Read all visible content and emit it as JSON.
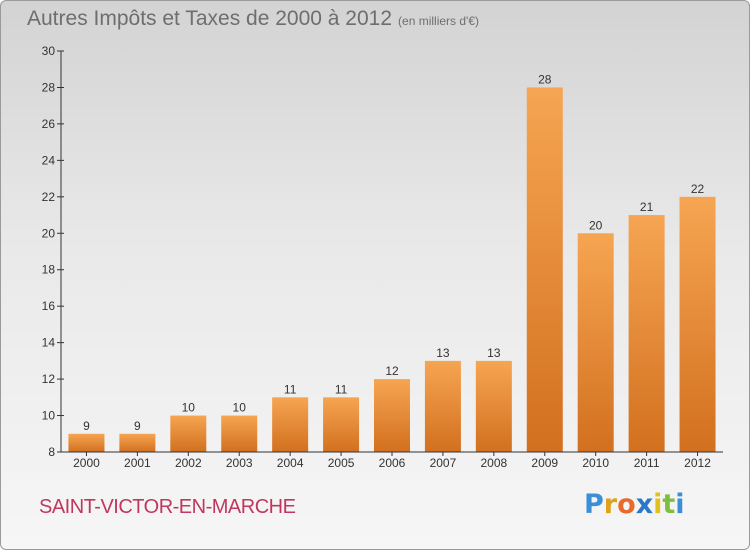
{
  "title": "Autres Impôts et Taxes de 2000 à 2012",
  "unit_note": "(en milliers d'€)",
  "commune": "SAINT-VICTOR-EN-MARCHE",
  "brand": {
    "letters": [
      "P",
      "r",
      "o",
      "x",
      "i",
      "t",
      "i"
    ],
    "colors": [
      "#3a8fd6",
      "#e0a11b",
      "#e86a2c",
      "#2b78c8",
      "#e2c21a",
      "#7fbf3c",
      "#3a8fd6"
    ]
  },
  "colors": {
    "bar_light": "#f6a552",
    "bar_dark": "#d2701f",
    "axis": "#333333"
  },
  "chart_data": {
    "type": "bar",
    "title": "Autres Impôts et Taxes de 2000 à 2012",
    "ylabel": "",
    "xlabel": "",
    "categories": [
      "2000",
      "2001",
      "2002",
      "2003",
      "2004",
      "2005",
      "2006",
      "2007",
      "2008",
      "2009",
      "2010",
      "2011",
      "2012"
    ],
    "values": [
      9,
      9,
      10,
      10,
      11,
      11,
      12,
      13,
      13,
      28,
      20,
      21,
      22
    ],
    "ylim": [
      8,
      30
    ],
    "yticks": [
      8,
      10,
      12,
      14,
      16,
      18,
      20,
      22,
      24,
      26,
      28,
      30
    ],
    "grid": false,
    "legend": "none"
  }
}
